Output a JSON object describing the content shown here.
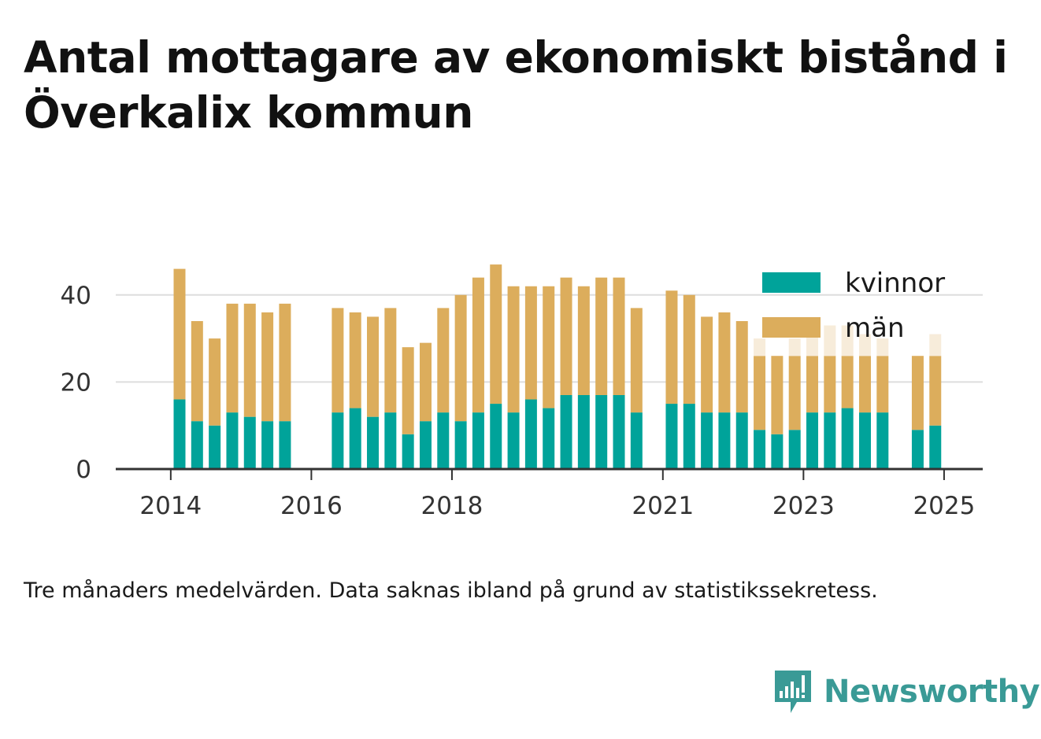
{
  "title": "Antal mottagare av ekonomiskt bistånd i Överkalix kommun",
  "footnote": "Tre månaders medelvärden. Data saknas ibland på grund av statistikssekretess.",
  "brand": {
    "name": "Newsworthy",
    "icon": "newsworthy-logo-icon",
    "color": "#3a9a96"
  },
  "colors": {
    "kvinnor": "#00a39a",
    "man": "#dcad5c",
    "man_preliminary": "#f7ecda",
    "grid": "#dddddd",
    "axis": "#333333"
  },
  "chart_data": {
    "type": "bar",
    "stacked": true,
    "x_tick_labels": [
      "2014",
      "2016",
      "2018",
      "2021",
      "2023",
      "2025"
    ],
    "y_ticks": [
      0,
      20,
      40
    ],
    "ylim": [
      0,
      50
    ],
    "legend": {
      "position": "top-right",
      "entries": [
        "kvinnor",
        "män"
      ]
    },
    "grid": true,
    "series_names": [
      "kvinnor",
      "män"
    ],
    "bars": [
      {
        "period": "2014-Q2",
        "kvinnor": 16,
        "man": 30
      },
      {
        "period": "2014-Q3",
        "kvinnor": 11,
        "man": 23
      },
      {
        "period": "2014-Q4",
        "kvinnor": 10,
        "man": 20
      },
      {
        "period": "2015-Q1",
        "kvinnor": 13,
        "man": 25
      },
      {
        "period": "2015-Q2",
        "kvinnor": 12,
        "man": 26
      },
      {
        "period": "2015-Q3",
        "kvinnor": 11,
        "man": 25
      },
      {
        "period": "2015-Q4",
        "kvinnor": 11,
        "man": 27
      },
      {
        "period": "2016-Q1",
        "kvinnor": null,
        "man": null
      },
      {
        "period": "2016-Q2",
        "kvinnor": null,
        "man": null
      },
      {
        "period": "2016-Q3",
        "kvinnor": 13,
        "man": 24
      },
      {
        "period": "2016-Q4",
        "kvinnor": 14,
        "man": 22
      },
      {
        "period": "2017-Q1",
        "kvinnor": 12,
        "man": 23
      },
      {
        "period": "2017-Q2",
        "kvinnor": 13,
        "man": 24
      },
      {
        "period": "2017-Q3",
        "kvinnor": 8,
        "man": 20
      },
      {
        "period": "2017-Q4",
        "kvinnor": 11,
        "man": 18
      },
      {
        "period": "2018-Q1",
        "kvinnor": 13,
        "man": 24
      },
      {
        "period": "2018-Q2",
        "kvinnor": 11,
        "man": 29
      },
      {
        "period": "2018-Q3",
        "kvinnor": 13,
        "man": 31
      },
      {
        "period": "2018-Q4",
        "kvinnor": 15,
        "man": 32
      },
      {
        "period": "2019-Q1",
        "kvinnor": 13,
        "man": 29
      },
      {
        "period": "2019-Q2",
        "kvinnor": 16,
        "man": 26
      },
      {
        "period": "2019-Q3",
        "kvinnor": 14,
        "man": 28
      },
      {
        "period": "2019-Q4",
        "kvinnor": 17,
        "man": 27
      },
      {
        "period": "2020-Q1",
        "kvinnor": 17,
        "man": 25
      },
      {
        "period": "2020-Q2",
        "kvinnor": 17,
        "man": 27
      },
      {
        "period": "2020-Q3",
        "kvinnor": 17,
        "man": 27
      },
      {
        "period": "2020-Q4",
        "kvinnor": 13,
        "man": 24
      },
      {
        "period": "2021-Q1",
        "kvinnor": null,
        "man": null
      },
      {
        "period": "2021-Q2",
        "kvinnor": 15,
        "man": 26
      },
      {
        "period": "2021-Q3",
        "kvinnor": 15,
        "man": 25
      },
      {
        "period": "2021-Q4",
        "kvinnor": 13,
        "man": 22
      },
      {
        "period": "2022-Q1",
        "kvinnor": 13,
        "man": 23
      },
      {
        "period": "2022-Q2",
        "kvinnor": 13,
        "man": 21
      },
      {
        "period": "2022-Q3",
        "kvinnor": 9,
        "man": 17,
        "man_preliminary": 4
      },
      {
        "period": "2022-Q4",
        "kvinnor": 8,
        "man": 18
      },
      {
        "period": "2023-Q1",
        "kvinnor": 9,
        "man": 17,
        "man_preliminary": 4
      },
      {
        "period": "2023-Q2",
        "kvinnor": 13,
        "man": 13,
        "man_preliminary": 7
      },
      {
        "period": "2023-Q3",
        "kvinnor": 13,
        "man": 13,
        "man_preliminary": 7
      },
      {
        "period": "2023-Q4",
        "kvinnor": 14,
        "man": 12,
        "man_preliminary": 7
      },
      {
        "period": "2024-Q1",
        "kvinnor": 13,
        "man": 13,
        "man_preliminary": 5
      },
      {
        "period": "2024-Q2",
        "kvinnor": 13,
        "man": 13,
        "man_preliminary": 4
      },
      {
        "period": "2024-Q3",
        "kvinnor": null,
        "man": null
      },
      {
        "period": "2024-Q4",
        "kvinnor": 9,
        "man": 17
      },
      {
        "period": "2025-Q1",
        "kvinnor": 10,
        "man": 16,
        "man_preliminary": 5
      }
    ]
  }
}
